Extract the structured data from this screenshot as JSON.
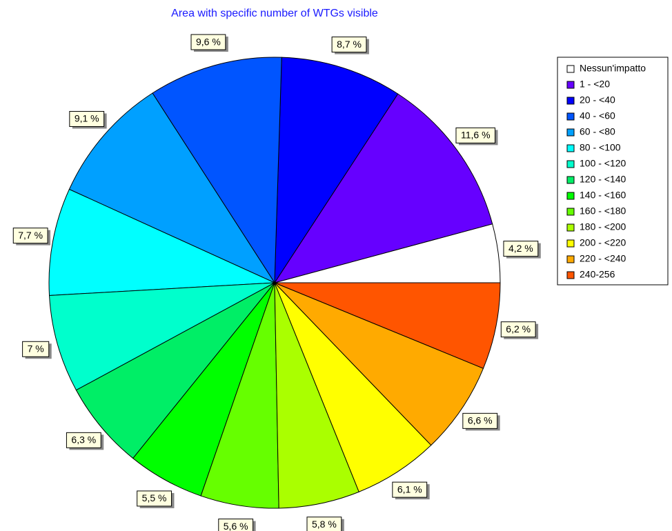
{
  "chart_data": {
    "type": "pie",
    "title": "Area with specific number of WTGs visible",
    "categories": [
      "Nessun'impatto",
      "1 - <20",
      "20 - <40",
      "40 - <60",
      "60 - <80",
      "80 - <100",
      "100 - <120",
      "120 - <140",
      "140 - <160",
      "160 - <180",
      "180 - <200",
      "200 - <220",
      "220 - <240",
      "240-256"
    ],
    "values": [
      4.2,
      11.6,
      8.7,
      9.6,
      9.1,
      7.7,
      7,
      6.3,
      5.5,
      5.6,
      5.8,
      6.1,
      6.6,
      6.2
    ],
    "value_labels": [
      "4,2 %",
      "11,6 %",
      "8,7 %",
      "9,6 %",
      "9,1 %",
      "7,7 %",
      "7 %",
      "6,3 %",
      "5,5 %",
      "5,6 %",
      "5,8 %",
      "6,1 %",
      "6,6 %",
      "6,2 %"
    ],
    "colors": [
      "#ffffff",
      "#6600ff",
      "#0000ff",
      "#0055ff",
      "#00a0ff",
      "#00ffff",
      "#00ffcc",
      "#00ee66",
      "#00ff00",
      "#66ff00",
      "#aaff00",
      "#ffff00",
      "#ffaa00",
      "#ff5500"
    ],
    "legend": "top-right"
  }
}
